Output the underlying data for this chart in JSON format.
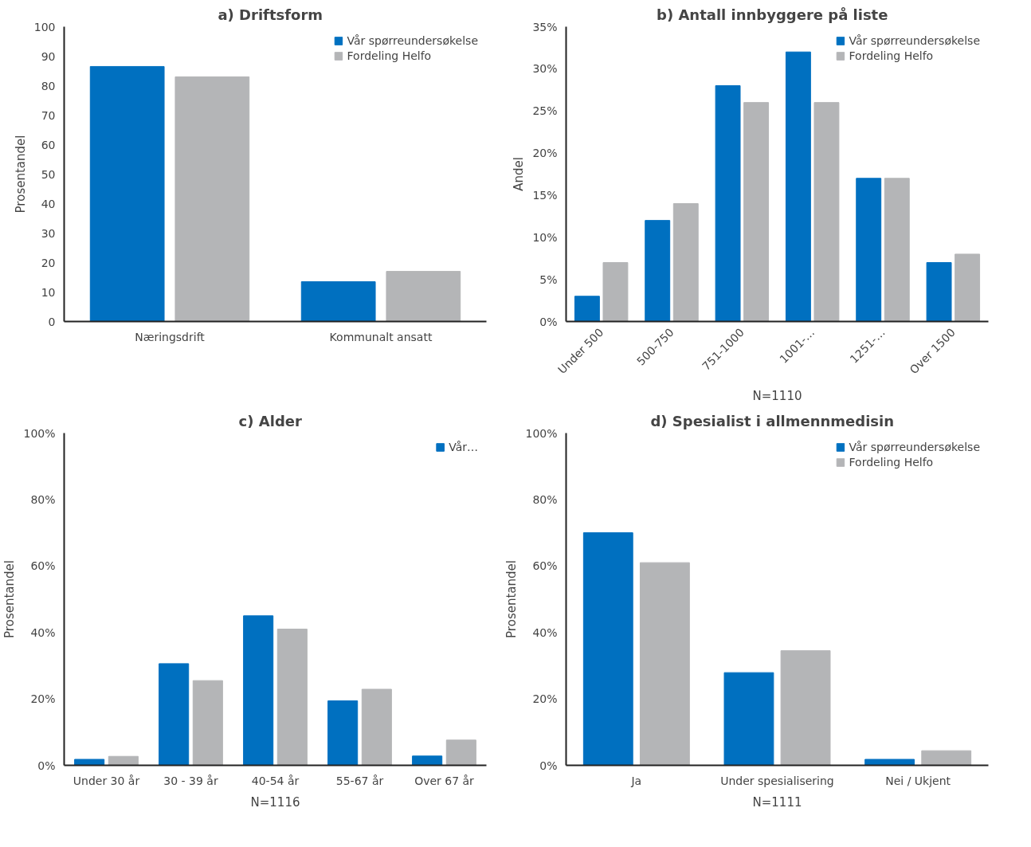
{
  "chart_data": [
    {
      "type": "bar",
      "title": "a)   Driftsform",
      "ylabel": "Prosentandel",
      "categories": [
        "Næringsdrift",
        "Kommunalt ansatt"
      ],
      "ylim": [
        0,
        100
      ],
      "yticks": [
        0,
        10,
        20,
        30,
        40,
        50,
        60,
        70,
        80,
        90,
        100
      ],
      "grid": false,
      "legend": "top right",
      "series": [
        {
          "name": "Vår spørreundersøkelse",
          "color": "#0070c0",
          "values": [
            86.5,
            13.5
          ]
        },
        {
          "name": "Fordeling Helfo",
          "color": "#b4b5b7",
          "values": [
            83,
            17
          ]
        }
      ]
    },
    {
      "type": "bar",
      "title": "b)   Antall innbyggere på liste",
      "ylabel": "Andel",
      "annotations": [
        "N=1110"
      ],
      "categories": [
        "Under 500",
        "500-750",
        "751-1000",
        "1001-…",
        "1251-…",
        "Over 1500"
      ],
      "ylim": [
        0,
        35
      ],
      "yticks": [
        {
          "value": 0,
          "label": "0%"
        },
        {
          "value": 5,
          "label": "5%"
        },
        {
          "value": 10,
          "label": "10%"
        },
        {
          "value": 15,
          "label": "15%"
        },
        {
          "value": 20,
          "label": "20%"
        },
        {
          "value": 25,
          "label": "25%"
        },
        {
          "value": 30,
          "label": "30%"
        },
        {
          "value": 35,
          "label": "35%"
        }
      ],
      "grid": false,
      "legend": "top right",
      "series": [
        {
          "name": "Vår spørreundersøkelse",
          "color": "#0070c0",
          "values": [
            3,
            12,
            28,
            32,
            17,
            7
          ]
        },
        {
          "name": "Fordeling Helfo",
          "color": "#b4b5b7",
          "values": [
            7,
            14,
            26,
            26,
            17,
            8
          ]
        }
      ]
    },
    {
      "type": "bar",
      "title": "c)   Alder",
      "ylabel": "Prosentandel",
      "annotations": [
        "N=1116"
      ],
      "categories": [
        "Under 30 år",
        "30 - 39 år",
        "40-54 år",
        "55-67 år",
        "Over 67 år"
      ],
      "ylim": [
        0,
        100
      ],
      "yticks": [
        {
          "value": 0,
          "label": "0%"
        },
        {
          "value": 20,
          "label": "20%"
        },
        {
          "value": 40,
          "label": "40%"
        },
        {
          "value": 60,
          "label": "60%"
        },
        {
          "value": 80,
          "label": "80%"
        },
        {
          "value": 100,
          "label": "100%"
        }
      ],
      "grid": false,
      "legend": "top right",
      "series": [
        {
          "name": "Vår…",
          "color": "#0070c0",
          "values": [
            1.8,
            30.6,
            45,
            19.4,
            2.8
          ]
        },
        {
          "color": "#b4b5b7",
          "values": [
            2.7,
            25.5,
            41,
            22.9,
            7.6
          ]
        }
      ]
    },
    {
      "type": "bar",
      "title": "d)   Spesialist i allmennmedisin",
      "ylabel": "Prosentandel",
      "annotations": [
        "N=1111"
      ],
      "categories": [
        "Ja",
        "Under spesialisering",
        "Nei / Ukjent"
      ],
      "ylim": [
        0,
        100
      ],
      "yticks": [
        {
          "value": 0,
          "label": "0%"
        },
        {
          "value": 20,
          "label": "20%"
        },
        {
          "value": 40,
          "label": "40%"
        },
        {
          "value": 60,
          "label": "60%"
        },
        {
          "value": 80,
          "label": "80%"
        },
        {
          "value": 100,
          "label": "100%"
        }
      ],
      "grid": false,
      "legend": "top right",
      "series": [
        {
          "name": "Vår spørreundersøkelse",
          "color": "#0070c0",
          "values": [
            70,
            27.9,
            1.8
          ]
        },
        {
          "name": "Fordeling Helfo",
          "color": "#b4b5b7",
          "values": [
            61,
            34.5,
            4.4
          ]
        }
      ]
    }
  ]
}
